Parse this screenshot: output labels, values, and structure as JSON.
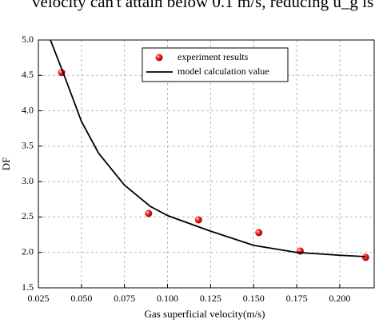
{
  "caption": "velocity can't attain below 0.1 m/s, reducing u_g is",
  "chart_data": {
    "type": "scatter",
    "xlabel": "Gas superficial velocity(m/s)",
    "ylabel": "DF",
    "xlim": [
      0.025,
      0.22
    ],
    "ylim": [
      1.5,
      5.0
    ],
    "xticks": [
      0.025,
      {
        "value": 0.05,
        "label": "0.050"
      },
      0.075,
      {
        "value": 0.1,
        "label": "0.100"
      },
      0.125,
      {
        "value": 0.15,
        "label": "0.150"
      },
      0.175,
      {
        "value": 0.2,
        "label": "0.200"
      }
    ],
    "yticks": [
      1.5,
      {
        "value": 2,
        "label": "2.0"
      },
      2.5,
      {
        "value": 3,
        "label": "3.0"
      },
      3.5,
      {
        "value": 4,
        "label": "4.0"
      },
      4.5,
      {
        "value": 5,
        "label": "5.0"
      }
    ],
    "grid": true,
    "legend": "top",
    "series": [
      {
        "name": "experiment results",
        "type": "scatter",
        "color": "#e01010",
        "x": [
          0.0385,
          0.089,
          0.118,
          0.153,
          0.177,
          0.215
        ],
        "values": [
          4.54,
          2.55,
          2.46,
          2.28,
          2.02,
          1.93
        ]
      },
      {
        "name": "model calculation value",
        "type": "line",
        "color": "#000000",
        "x": [
          0.032,
          0.04,
          0.05,
          0.06,
          0.075,
          0.09,
          0.1,
          0.125,
          0.15,
          0.175,
          0.2,
          0.215
        ],
        "values": [
          5.0,
          4.5,
          3.85,
          3.4,
          2.95,
          2.65,
          2.52,
          2.3,
          2.1,
          2.0,
          1.96,
          1.94
        ]
      }
    ]
  }
}
